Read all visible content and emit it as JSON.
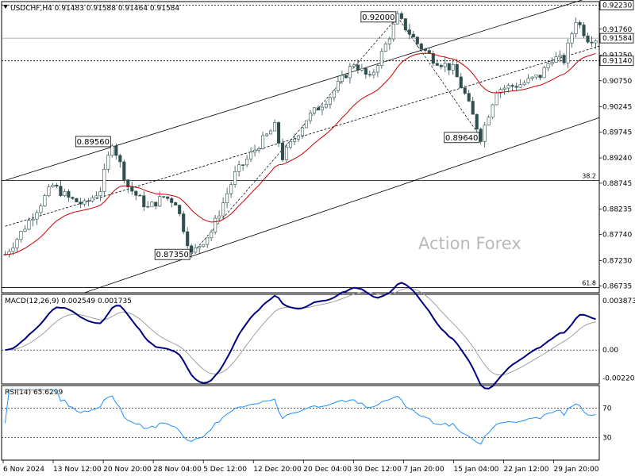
{
  "chart_data": {
    "type": "candlestick",
    "symbol_header": "USDCHF,H4  0.91483 0.91588 0.91464 0.91584",
    "watermark": "Action Forex",
    "price_axis": {
      "range": [
        0.866,
        0.923
      ],
      "ticks": [
        "0.92230",
        "0.91760",
        "0.91250",
        "0.90750",
        "0.90245",
        "0.89745",
        "0.89240",
        "0.88745",
        "0.88235",
        "0.87740",
        "0.87230",
        "0.86735"
      ]
    },
    "price_labels": {
      "current": "0.91584",
      "level": "0.91140",
      "top": "0.92230"
    },
    "horizontal_levels": [
      {
        "price": 0.9114,
        "style": "dotted"
      },
      {
        "price": 0.9223,
        "style": "dotted"
      },
      {
        "price": 0.91584,
        "style": "solid-gray"
      },
      {
        "price": 0.888,
        "style": "solid",
        "label": "38.2"
      },
      {
        "price": 0.867,
        "style": "solid",
        "label": "61.8"
      }
    ],
    "pivot_tags": [
      {
        "label": "0.89560",
        "bar": 27,
        "price": 0.8956
      },
      {
        "label": "0.87350",
        "bar": 47,
        "price": 0.8735
      },
      {
        "label": "0.92000",
        "bar": 99,
        "price": 0.92
      },
      {
        "label": "0.89640",
        "bar": 120,
        "price": 0.8964
      }
    ],
    "candles": [],
    "moving_average": "trend-following EMA",
    "macd": {
      "label": "MACD(12,26,9) 0.002549 0.001735",
      "range": [
        -0.0026,
        0.0043
      ],
      "ticks": [
        "0.003873",
        "0.00",
        "-0.002201"
      ],
      "main_color": "#000080",
      "signal_color": "#a0a0a0"
    },
    "rsi": {
      "label": "RSI(14) 65.6299",
      "range": [
        0,
        100
      ],
      "levels": [
        70,
        30
      ],
      "ticks": [
        "70",
        "30"
      ],
      "color": "#1e90ff"
    },
    "time_axis": {
      "labels": [
        "6 Nov 2024",
        "13 Nov 12:00",
        "20 Nov 20:00",
        "28 Nov 04:00",
        "5 Dec 12:00",
        "12 Dec 20:00",
        "20 Dec 04:00",
        "30 Dec 12:00",
        "7 Jan 20:00",
        "15 Jan 04:00",
        "22 Jan 12:00",
        "29 Jan 20:00"
      ]
    },
    "colors": {
      "candle": "#2f4f4f",
      "ema": "#cc0000",
      "channel": "#000000"
    }
  }
}
